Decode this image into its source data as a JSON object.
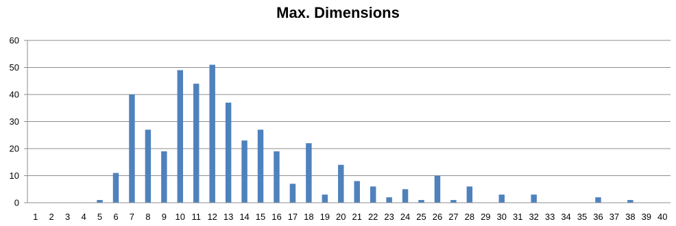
{
  "chart_data": {
    "type": "bar",
    "title": "Max. Dimensions",
    "xlabel": "",
    "ylabel": "",
    "categories": [
      "1",
      "2",
      "3",
      "4",
      "5",
      "6",
      "7",
      "8",
      "9",
      "10",
      "11",
      "12",
      "13",
      "14",
      "15",
      "16",
      "17",
      "18",
      "19",
      "20",
      "21",
      "22",
      "23",
      "24",
      "25",
      "26",
      "27",
      "28",
      "29",
      "30",
      "31",
      "32",
      "33",
      "34",
      "35",
      "36",
      "37",
      "38",
      "39",
      "40"
    ],
    "values": [
      0,
      0,
      0,
      0,
      1,
      11,
      40,
      27,
      19,
      49,
      44,
      51,
      37,
      23,
      27,
      19,
      7,
      22,
      3,
      14,
      8,
      6,
      2,
      5,
      1,
      10,
      1,
      6,
      0,
      3,
      0,
      3,
      0,
      0,
      0,
      2,
      0,
      1,
      0,
      0
    ],
    "ylim": [
      0,
      60
    ],
    "yticks": [
      0,
      10,
      20,
      30,
      40,
      50,
      60
    ],
    "grid": true,
    "legend": "none",
    "bar_color": "#4F81BD",
    "grid_color": "#8C8C8C",
    "axis_color": "#8C8C8C"
  }
}
